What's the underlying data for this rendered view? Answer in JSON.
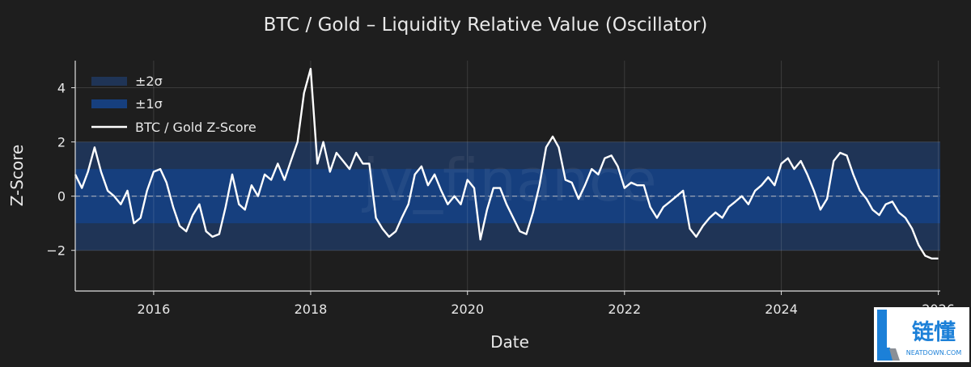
{
  "chart_data": {
    "type": "line",
    "title": "BTC / Gold – Liquidity Relative Value (Oscillator)",
    "xlabel": "Date",
    "ylabel": "Z-Score",
    "xlim": [
      "2015-01-01",
      "2026-01-10"
    ],
    "ylim": [
      -3.5,
      5.0
    ],
    "grid": true,
    "legend_position": "top-left",
    "x_ticks": [
      {
        "value": "2016-01-01",
        "label": "2016"
      },
      {
        "value": "2018-01-01",
        "label": "2018"
      },
      {
        "value": "2020-01-01",
        "label": "2020"
      },
      {
        "value": "2022-01-01",
        "label": "2022"
      },
      {
        "value": "2024-01-01",
        "label": "2024"
      },
      {
        "value": "2026-01-01",
        "label": "2026"
      }
    ],
    "y_ticks": [
      {
        "value": 4,
        "label": "4"
      },
      {
        "value": 2,
        "label": "2"
      },
      {
        "value": 0,
        "label": "0"
      },
      {
        "value": -2,
        "label": "−2"
      }
    ],
    "bands": [
      {
        "name": "±2σ",
        "low": -2,
        "high": 2,
        "color": "#1f3456"
      },
      {
        "name": "±1σ",
        "low": -1,
        "high": 1,
        "color": "#163f7e"
      }
    ],
    "zero_line_color": "#9aa3b5",
    "series": [
      {
        "name": "BTC / Gold Z-Score",
        "color": "#ffffff",
        "x": [
          "2015-01-01",
          "2015-02-01",
          "2015-03-01",
          "2015-04-01",
          "2015-05-01",
          "2015-06-01",
          "2015-07-01",
          "2015-08-01",
          "2015-09-01",
          "2015-10-01",
          "2015-11-01",
          "2015-12-01",
          "2016-01-01",
          "2016-02-01",
          "2016-03-01",
          "2016-04-01",
          "2016-05-01",
          "2016-06-01",
          "2016-07-01",
          "2016-08-01",
          "2016-09-01",
          "2016-10-01",
          "2016-11-01",
          "2016-12-01",
          "2017-01-01",
          "2017-02-01",
          "2017-03-01",
          "2017-04-01",
          "2017-05-01",
          "2017-06-01",
          "2017-07-01",
          "2017-08-01",
          "2017-09-01",
          "2017-10-01",
          "2017-11-01",
          "2017-12-01",
          "2018-01-01",
          "2018-02-01",
          "2018-03-01",
          "2018-04-01",
          "2018-05-01",
          "2018-06-01",
          "2018-07-01",
          "2018-08-01",
          "2018-09-01",
          "2018-10-01",
          "2018-11-01",
          "2018-12-01",
          "2019-01-01",
          "2019-02-01",
          "2019-03-01",
          "2019-04-01",
          "2019-05-01",
          "2019-06-01",
          "2019-07-01",
          "2019-08-01",
          "2019-09-01",
          "2019-10-01",
          "2019-11-01",
          "2019-12-01",
          "2020-01-01",
          "2020-02-01",
          "2020-03-01",
          "2020-04-01",
          "2020-05-01",
          "2020-06-01",
          "2020-07-01",
          "2020-08-01",
          "2020-09-01",
          "2020-10-01",
          "2020-11-01",
          "2020-12-01",
          "2021-01-01",
          "2021-02-01",
          "2021-03-01",
          "2021-04-01",
          "2021-05-01",
          "2021-06-01",
          "2021-07-01",
          "2021-08-01",
          "2021-09-01",
          "2021-10-01",
          "2021-11-01",
          "2021-12-01",
          "2022-01-01",
          "2022-02-01",
          "2022-03-01",
          "2022-04-01",
          "2022-05-01",
          "2022-06-01",
          "2022-07-01",
          "2022-08-01",
          "2022-09-01",
          "2022-10-01",
          "2022-11-01",
          "2022-12-01",
          "2023-01-01",
          "2023-02-01",
          "2023-03-01",
          "2023-04-01",
          "2023-05-01",
          "2023-06-01",
          "2023-07-01",
          "2023-08-01",
          "2023-09-01",
          "2023-10-01",
          "2023-11-01",
          "2023-12-01",
          "2024-01-01",
          "2024-02-01",
          "2024-03-01",
          "2024-04-01",
          "2024-05-01",
          "2024-06-01",
          "2024-07-01",
          "2024-08-01",
          "2024-09-01",
          "2024-10-01",
          "2024-11-01",
          "2024-12-01",
          "2025-01-01",
          "2025-02-01",
          "2025-03-01",
          "2025-04-01",
          "2025-05-01",
          "2025-06-01",
          "2025-07-01",
          "2025-08-01",
          "2025-09-01",
          "2025-10-01",
          "2025-11-01",
          "2025-12-01",
          "2026-01-01"
        ],
        "values": [
          0.8,
          0.3,
          0.9,
          1.8,
          0.9,
          0.2,
          0.0,
          -0.3,
          0.2,
          -1.0,
          -0.8,
          0.2,
          0.9,
          1.0,
          0.5,
          -0.4,
          -1.1,
          -1.3,
          -0.7,
          -0.3,
          -1.3,
          -1.5,
          -1.4,
          -0.4,
          0.8,
          -0.3,
          -0.5,
          0.4,
          0.0,
          0.8,
          0.6,
          1.2,
          0.6,
          1.3,
          2.0,
          3.8,
          4.7,
          1.2,
          2.0,
          0.9,
          1.6,
          1.3,
          1.0,
          1.6,
          1.2,
          1.2,
          -0.8,
          -1.2,
          -1.5,
          -1.3,
          -0.8,
          -0.3,
          0.8,
          1.1,
          0.4,
          0.8,
          0.2,
          -0.3,
          0.0,
          -0.3,
          0.6,
          0.3,
          -1.6,
          -0.5,
          0.3,
          0.3,
          -0.3,
          -0.8,
          -1.3,
          -1.4,
          -0.6,
          0.4,
          1.8,
          2.2,
          1.8,
          0.6,
          0.5,
          -0.1,
          0.4,
          1.0,
          0.8,
          1.4,
          1.5,
          1.1,
          0.3,
          0.5,
          0.4,
          0.4,
          -0.4,
          -0.8,
          -0.4,
          -0.2,
          0.0,
          0.2,
          -1.2,
          -1.5,
          -1.1,
          -0.8,
          -0.6,
          -0.8,
          -0.4,
          -0.2,
          0.0,
          -0.3,
          0.2,
          0.4,
          0.7,
          0.4,
          1.2,
          1.4,
          1.0,
          1.3,
          0.8,
          0.2,
          -0.5,
          -0.1,
          1.3,
          1.6,
          1.5,
          0.8,
          0.2,
          -0.1,
          -0.5,
          -0.7,
          -0.3,
          -0.2,
          -0.6,
          -0.8,
          -1.2,
          -1.8,
          -2.2,
          -2.3,
          -2.3
        ]
      }
    ]
  },
  "legend": {
    "items": [
      "±2σ",
      "±1σ",
      "BTC / Gold Z-Score"
    ]
  },
  "watermark": {
    "text": "jv_finance"
  },
  "logo": {
    "text": "链懂",
    "subtext": "NEATDOWN.COM",
    "color": "#1c80d8"
  }
}
